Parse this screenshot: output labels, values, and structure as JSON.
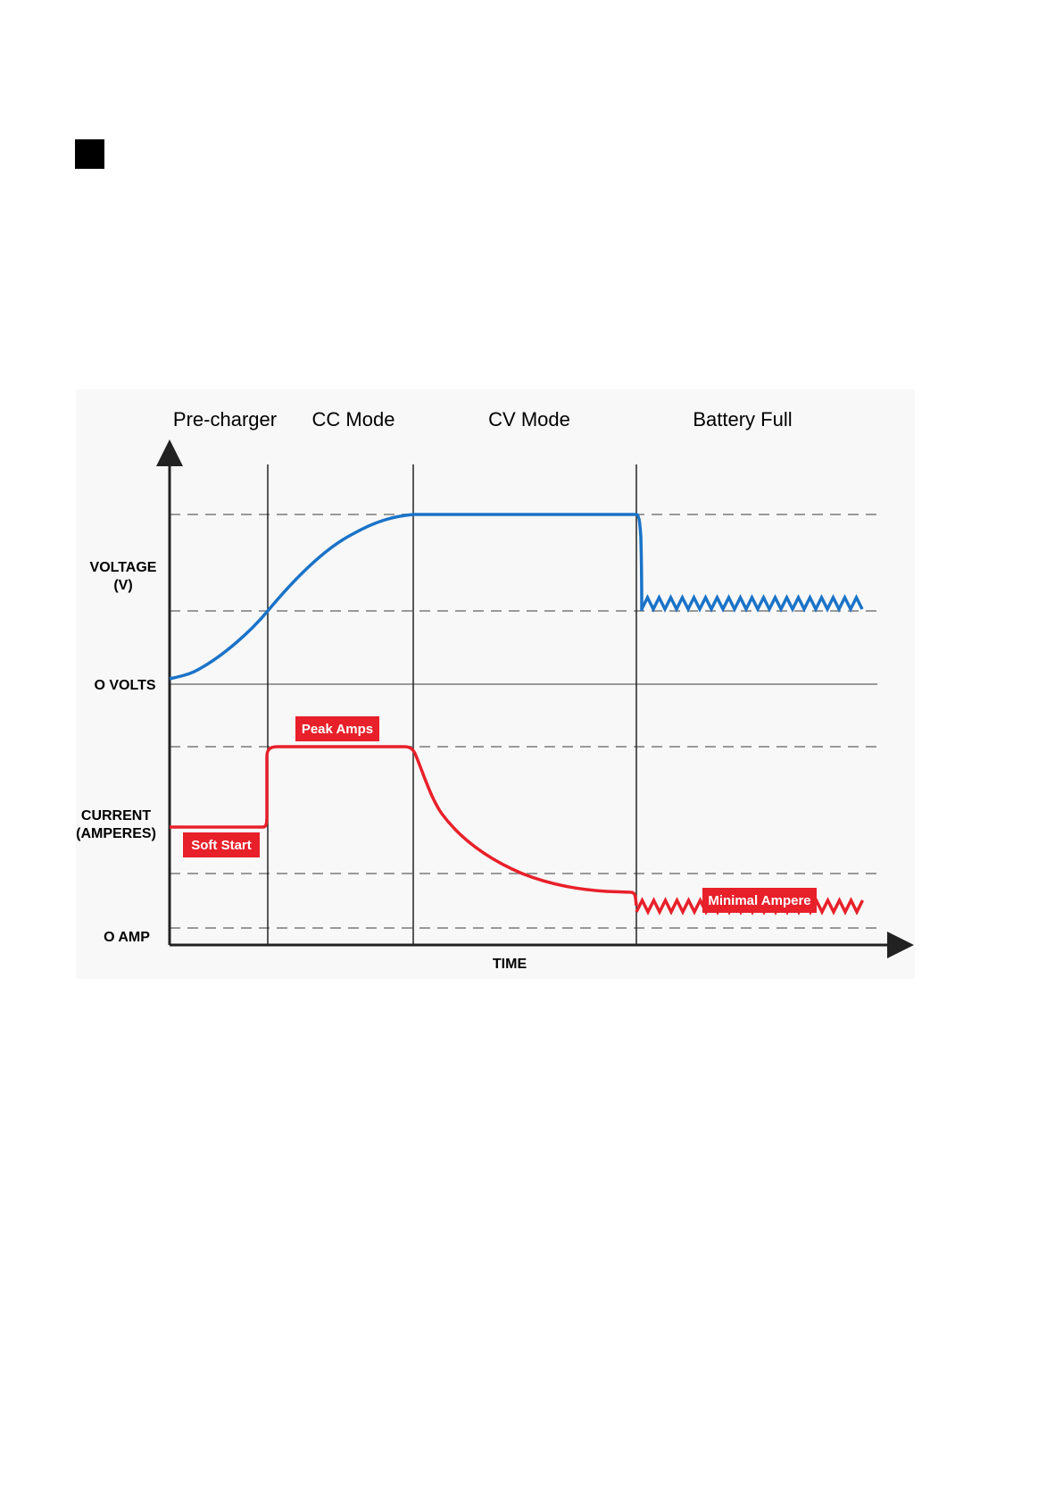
{
  "phases": [
    "Pre-charger",
    "CC Mode",
    "CV Mode",
    "Battery Full"
  ],
  "labels": {
    "voltage_line1": "VOLTAGE",
    "voltage_line2": "(V)",
    "zero_volts": "O VOLTS",
    "current_line1": "CURRENT",
    "current_line2": "(AMPERES)",
    "zero_amp": "O AMP",
    "time": "TIME"
  },
  "tags": {
    "peak": "Peak Amps",
    "soft": "Soft Start",
    "minimal": "Minimal Ampere"
  },
  "colors": {
    "voltage": "#1a73c8",
    "current": "#e8202a",
    "tag_bg": "#e8202a",
    "dashed": "#999999",
    "axis": "#222222"
  }
}
